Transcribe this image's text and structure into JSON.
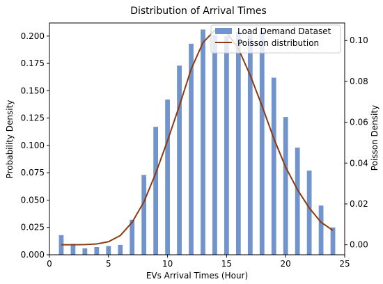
{
  "chart_data": {
    "type": "bar",
    "title": "Distribution of Arrival Times",
    "xlabel": "EVs Arrival Times (Hour)",
    "ylabel": "Probability Density",
    "y2label": "Poisson Density",
    "xlim": [
      0,
      25
    ],
    "ylim": [
      0,
      0.212
    ],
    "y2lim": [
      -0.0049,
      0.1086
    ],
    "x_ticks": [
      "0",
      "5",
      "10",
      "15",
      "20",
      "25"
    ],
    "y_ticks": [
      "0.000",
      "0.025",
      "0.050",
      "0.075",
      "0.100",
      "0.125",
      "0.150",
      "0.175",
      "0.200"
    ],
    "y2_ticks": [
      "0.00",
      "0.02",
      "0.04",
      "0.06",
      "0.08",
      "0.10"
    ],
    "legend_position": "top-right",
    "colors": {
      "bars": "#7294cc",
      "line": "#8b3a0f"
    },
    "series": [
      {
        "name": "Load Demand Dataset",
        "kind": "bar",
        "axis": "left",
        "x": [
          1,
          2,
          3,
          4,
          5,
          6,
          7,
          8,
          9,
          10,
          11,
          12,
          13,
          14,
          15,
          16,
          17,
          18,
          19,
          20,
          21,
          22,
          23,
          24
        ],
        "values": [
          0.018,
          0.01,
          0.006,
          0.007,
          0.008,
          0.009,
          0.032,
          0.073,
          0.117,
          0.142,
          0.173,
          0.193,
          0.206,
          0.201,
          0.2,
          0.204,
          0.201,
          0.204,
          0.162,
          0.126,
          0.098,
          0.077,
          0.045,
          0.025
        ]
      },
      {
        "name": "Poisson distribution",
        "kind": "line",
        "axis": "right",
        "x": [
          1,
          2,
          3,
          4,
          5,
          6,
          7,
          8,
          9,
          10,
          11,
          12,
          13,
          14,
          15,
          16,
          17,
          18,
          19,
          20,
          21,
          22,
          23,
          24
        ],
        "values": [
          0.0,
          0.0,
          0.0001,
          0.0004,
          0.0015,
          0.0045,
          0.011,
          0.021,
          0.035,
          0.051,
          0.068,
          0.086,
          0.099,
          0.105,
          0.104,
          0.096,
          0.083,
          0.068,
          0.052,
          0.038,
          0.027,
          0.018,
          0.011,
          0.007
        ]
      }
    ]
  }
}
